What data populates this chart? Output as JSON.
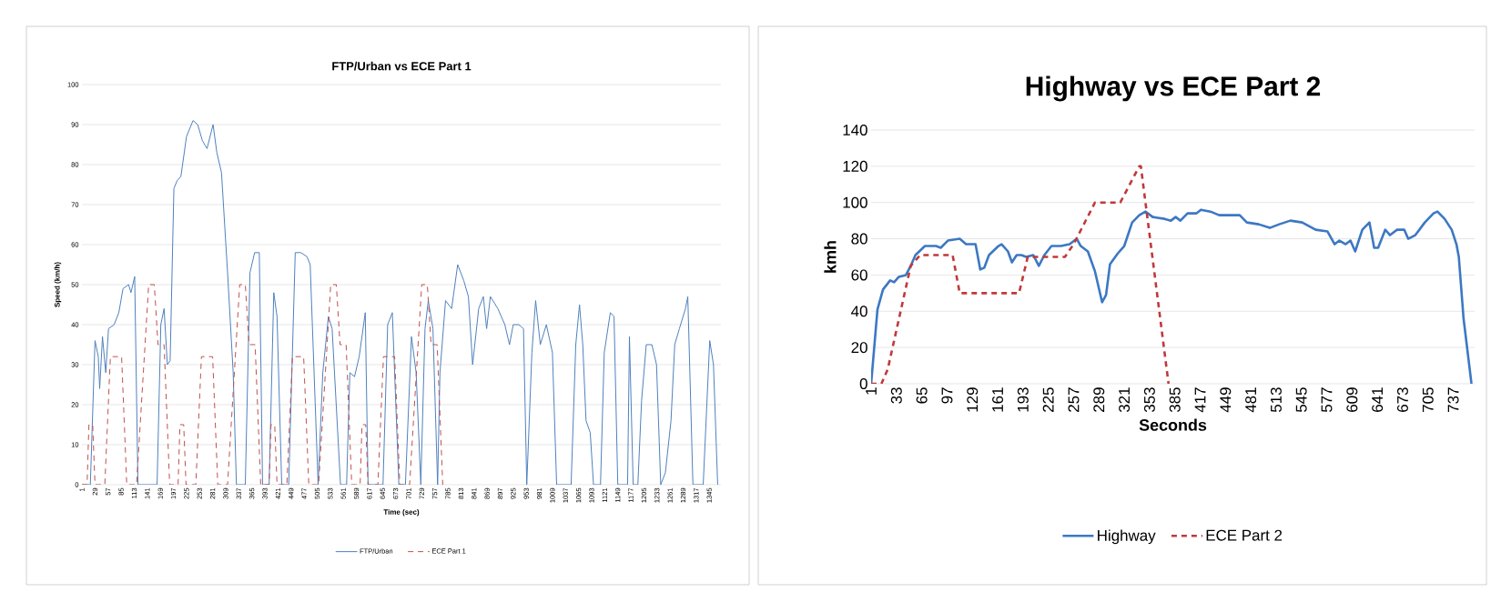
{
  "chart_data": [
    {
      "type": "line",
      "title": "FTP/Urban vs ECE Part 1",
      "xlabel": "Time (sec)",
      "ylabel": "Speed (km/h)",
      "xlim": [
        1,
        1370
      ],
      "ylim": [
        0,
        100
      ],
      "grid": "y",
      "legend": "bottom",
      "xticks": [
        1,
        29,
        57,
        85,
        113,
        141,
        169,
        197,
        225,
        253,
        281,
        309,
        337,
        365,
        393,
        421,
        449,
        477,
        505,
        533,
        561,
        589,
        617,
        645,
        673,
        701,
        729,
        757,
        785,
        813,
        841,
        869,
        897,
        925,
        953,
        981,
        1009,
        1037,
        1065,
        1093,
        1121,
        1149,
        1177,
        1205,
        1233,
        1261,
        1289,
        1317,
        1345
      ],
      "yticks": [
        0,
        10,
        20,
        30,
        40,
        50,
        60,
        70,
        80,
        90,
        100
      ],
      "series": [
        {
          "name": "FTP/Urban",
          "color": "#4f81bd",
          "line_style": "solid",
          "x": [
            1,
            19,
            29,
            36,
            39,
            45,
            52,
            58,
            70,
            80,
            89,
            101,
            106,
            114,
            121,
            162,
            170,
            177,
            184,
            190,
            198,
            205,
            213,
            225,
            239,
            249,
            259,
            269,
            282,
            290,
            300,
            313,
            325,
            332,
            351,
            361,
            371,
            381,
            388,
            402,
            412,
            419,
            429,
            444,
            458,
            470,
            483,
            490,
            507,
            517,
            529,
            537,
            555,
            568,
            575,
            585,
            595,
            608,
            614,
            646,
            656,
            666,
            680,
            694,
            707,
            717,
            727,
            736,
            743,
            753,
            763,
            768,
            780,
            793,
            806,
            819,
            829,
            838,
            851,
            861,
            868,
            876,
            892,
            907,
            917,
            925,
            937,
            947,
            954,
            965,
            973,
            983,
            996,
            1009,
            1018,
            1049,
            1059,
            1067,
            1074,
            1081,
            1090,
            1097,
            1112,
            1120,
            1133,
            1141,
            1149,
            1170,
            1174,
            1182,
            1192,
            1200,
            1210,
            1222,
            1232,
            1241,
            1251,
            1263,
            1271,
            1281,
            1294,
            1299,
            1310,
            1332,
            1346,
            1354,
            1363
          ],
          "values": [
            0,
            0,
            36,
            32,
            24,
            37,
            28,
            39,
            40,
            43,
            49,
            50,
            48,
            52,
            0,
            0,
            40,
            44,
            30,
            31,
            74,
            76,
            77,
            87,
            91,
            90,
            86,
            84,
            90,
            83,
            78,
            53,
            28,
            0,
            0,
            53,
            58,
            58,
            0,
            0,
            48,
            42,
            0,
            0,
            58,
            58,
            57,
            55,
            0,
            28,
            42,
            39,
            0,
            0,
            28,
            27,
            32,
            43,
            0,
            0,
            40,
            43,
            0,
            0,
            37,
            28,
            0,
            39,
            46,
            39,
            0,
            28,
            46,
            44,
            55,
            51,
            47,
            30,
            44,
            47,
            39,
            47,
            44,
            40,
            35,
            40,
            40,
            39,
            0,
            33,
            46,
            35,
            40,
            33,
            0,
            0,
            35,
            45,
            35,
            16,
            13,
            0,
            0,
            33,
            43,
            42,
            0,
            0,
            37,
            0,
            0,
            21,
            35,
            35,
            30,
            0,
            3,
            16,
            35,
            39,
            44,
            47,
            0,
            0,
            36,
            30,
            0
          ]
        },
        {
          "name": "ECE Part 1",
          "color": "#c0504d",
          "line_style": "dashed",
          "x": [
            1,
            12,
            16,
            24,
            29,
            50,
            62,
            86,
            97,
            118,
            144,
            156,
            164,
            177,
            189,
            196,
            207,
            211,
            219,
            224,
            245,
            257,
            281,
            292,
            313,
            339,
            351,
            359,
            372,
            384,
            391,
            402,
            406,
            414,
            419,
            440,
            452,
            476,
            487,
            508,
            534,
            546,
            554,
            567,
            579,
            586,
            597,
            601,
            609,
            614,
            635,
            647,
            671,
            682,
            703,
            729,
            741,
            749,
            762,
            774,
            780
          ],
          "values": [
            0,
            0,
            15,
            15,
            0,
            0,
            32,
            32,
            0,
            0,
            50,
            50,
            35,
            35,
            0,
            0,
            0,
            15,
            15,
            0,
            0,
            32,
            32,
            0,
            0,
            50,
            50,
            35,
            35,
            0,
            0,
            0,
            15,
            15,
            0,
            0,
            32,
            32,
            0,
            0,
            50,
            50,
            35,
            35,
            0,
            0,
            0,
            15,
            15,
            0,
            0,
            32,
            32,
            0,
            0,
            50,
            50,
            35,
            35,
            0,
            0
          ]
        }
      ]
    },
    {
      "type": "line",
      "title": "Highway vs ECE Part 2",
      "xlabel": "Seconds",
      "ylabel": "kmh",
      "xlim": [
        1,
        764
      ],
      "ylim": [
        0,
        140
      ],
      "grid": "y",
      "legend": "bottom",
      "xticks": [
        1,
        33,
        65,
        97,
        129,
        161,
        193,
        225,
        257,
        289,
        321,
        353,
        385,
        417,
        449,
        481,
        513,
        545,
        577,
        609,
        641,
        673,
        705,
        737
      ],
      "yticks": [
        0,
        20,
        40,
        60,
        80,
        100,
        120,
        140
      ],
      "series": [
        {
          "name": "Highway",
          "color": "#3c78c3",
          "line_style": "solid",
          "x": [
            1,
            9,
            16,
            25,
            30,
            36,
            45,
            51,
            57,
            69,
            83,
            89,
            98,
            113,
            121,
            133,
            139,
            144,
            150,
            162,
            166,
            174,
            179,
            185,
            191,
            197,
            206,
            213,
            220,
            229,
            241,
            252,
            261,
            266,
            275,
            284,
            293,
            298,
            303,
            313,
            321,
            331,
            340,
            348,
            357,
            372,
            380,
            386,
            392,
            401,
            412,
            418,
            430,
            441,
            467,
            476,
            491,
            505,
            517,
            531,
            546,
            563,
            578,
            587,
            593,
            601,
            607,
            613,
            622,
            631,
            637,
            642,
            651,
            657,
            666,
            675,
            680,
            689,
            701,
            712,
            717,
            726,
            735,
            741,
            744,
            750,
            760
          ],
          "values": [
            0,
            41,
            52,
            57,
            56,
            59,
            60,
            65,
            71,
            76,
            76,
            75,
            79,
            80,
            77,
            77,
            63,
            64,
            71,
            76,
            77,
            73,
            67,
            71,
            71,
            70,
            71,
            65,
            71,
            76,
            76,
            77,
            80,
            76,
            73,
            62,
            45,
            49,
            66,
            72,
            76,
            89,
            93,
            95,
            92,
            91,
            90,
            92,
            90,
            94,
            94,
            96,
            95,
            93,
            93,
            89,
            88,
            86,
            88,
            90,
            89,
            85,
            84,
            77,
            79,
            77,
            79,
            73,
            85,
            89,
            75,
            75,
            85,
            82,
            85,
            85,
            80,
            82,
            89,
            94,
            95,
            91,
            85,
            77,
            70,
            36,
            0
          ]
        },
        {
          "name": "ECE Part 2",
          "color": "#c0393b",
          "line_style": "dashed",
          "x": [
            1,
            14,
            22,
            51,
            63,
            104,
            113,
            188,
            199,
            246,
            257,
            284,
            316,
            340,
            342,
            377
          ],
          "values": [
            0,
            0,
            8,
            65,
            71,
            71,
            50,
            50,
            70,
            70,
            77,
            100,
            100,
            120,
            120,
            0
          ]
        }
      ]
    }
  ]
}
